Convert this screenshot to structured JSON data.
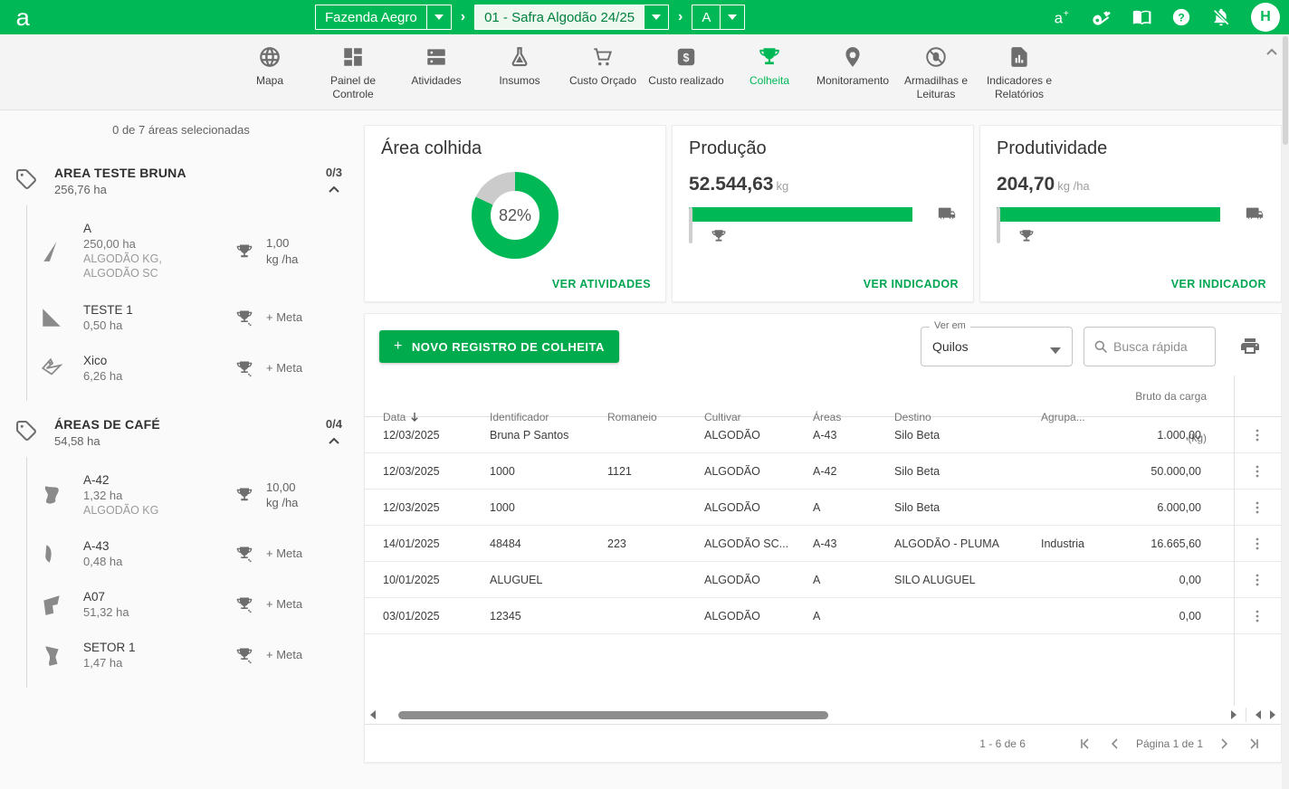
{
  "colors": {
    "header_green": "#00b956",
    "accent_green": "#00a651",
    "button_green": "#00ab4e",
    "donut_gray": "#cbcbcb"
  },
  "header": {
    "logo": "a",
    "farm_selector": {
      "value": "Fazenda Aegro"
    },
    "season_selector": {
      "value": "01 - Safra Algodão 24/25"
    },
    "group_selector": {
      "value": "A"
    },
    "avatar_initial": "H"
  },
  "nav": {
    "items": [
      {
        "label": "Mapa",
        "icon": "globe",
        "active": false
      },
      {
        "label": "Painel de Controle",
        "icon": "dashboard",
        "active": false
      },
      {
        "label": "Atividades",
        "icon": "activities",
        "active": false
      },
      {
        "label": "Insumos",
        "icon": "flask",
        "active": false
      },
      {
        "label": "Custo Orçado",
        "icon": "cart",
        "active": false
      },
      {
        "label": "Custo realizado",
        "icon": "dollar",
        "active": false
      },
      {
        "label": "Colheita",
        "icon": "trophy",
        "active": true
      },
      {
        "label": "Monitoramento",
        "icon": "pin",
        "active": false
      },
      {
        "label": "Armadilhas e Leituras",
        "icon": "bug-off",
        "active": false
      },
      {
        "label": "Indicadores e Relatórios",
        "icon": "report",
        "active": false
      }
    ]
  },
  "sidebar": {
    "selection_summary": "0 de 7 áreas selecionadas",
    "groups": [
      {
        "name": "AREA TESTE BRUNA",
        "area": "256,76 ha",
        "count": "0/3",
        "items": [
          {
            "name": "A",
            "area": "250,00 ha",
            "crops": "ALGODÃO KG,\nALGODÃO SC",
            "goal_value": "1,00",
            "goal_unit": "kg /ha",
            "shape": 0
          },
          {
            "name": "TESTE 1",
            "area": "0,50 ha",
            "crops": "",
            "goal_label": "+ Meta",
            "shape": 1
          },
          {
            "name": "Xico",
            "area": "6,26 ha",
            "crops": "",
            "goal_label": "+ Meta",
            "shape": 2
          }
        ]
      },
      {
        "name": "ÁREAS DE CAFÉ",
        "area": "54,58 ha",
        "count": "0/4",
        "items": [
          {
            "name": "A-42",
            "area": "1,32 ha",
            "crops": "ALGODÃO KG",
            "goal_value": "10,00",
            "goal_unit": "kg /ha",
            "shape": 3
          },
          {
            "name": "A-43",
            "area": "0,48 ha",
            "crops": "",
            "goal_label": "+ Meta",
            "shape": 4
          },
          {
            "name": "A07",
            "area": "51,32 ha",
            "crops": "",
            "goal_label": "+ Meta",
            "shape": 5
          },
          {
            "name": "SETOR 1",
            "area": "1,47 ha",
            "crops": "",
            "goal_label": "+ Meta",
            "shape": 6
          }
        ]
      }
    ]
  },
  "cards": {
    "area_colhida": {
      "title": "Área colhida",
      "percent": 82,
      "percent_label": "82%",
      "link": "VER ATIVIDADES"
    },
    "producao": {
      "title": "Produção",
      "value": "52.544,63",
      "unit": "kg",
      "bar_percent": 93,
      "link": "VER INDICADOR"
    },
    "produtividade": {
      "title": "Produtividade",
      "value": "204,70",
      "unit": "kg /ha",
      "bar_percent": 93,
      "link": "VER INDICADOR"
    }
  },
  "toolbar": {
    "new_record_label": "NOVO REGISTRO DE COLHEITA",
    "view_in_label": "Ver em",
    "view_in_value": "Quilos",
    "search_placeholder": "Busca rápida"
  },
  "table": {
    "columns": [
      "Data",
      "Identificador",
      "Romaneio",
      "Cultivar",
      "Áreas",
      "Destino",
      "Agrupa...",
      "Bruto da carga (kg)"
    ],
    "rows": [
      {
        "data": "12/03/2025",
        "identificador": "Bruna P Santos",
        "romaneio": "",
        "cultivar": "ALGODÃO",
        "areas": "A-43",
        "destino": "Silo Beta",
        "agrupamento": "",
        "bruto": "1.000,00"
      },
      {
        "data": "12/03/2025",
        "identificador": "1000",
        "romaneio": "1121",
        "cultivar": "ALGODÃO",
        "areas": "A-42",
        "destino": "Silo Beta",
        "agrupamento": "",
        "bruto": "50.000,00"
      },
      {
        "data": "12/03/2025",
        "identificador": "1000",
        "romaneio": "",
        "cultivar": "ALGODÃO",
        "areas": "A",
        "destino": "Silo Beta",
        "agrupamento": "",
        "bruto": "6.000,00"
      },
      {
        "data": "14/01/2025",
        "identificador": "48484",
        "romaneio": "223",
        "cultivar": "ALGODÃO SC...",
        "areas": "A-43",
        "destino": "ALGODÃO - PLUMA",
        "agrupamento": "Industria",
        "bruto": "16.665,60"
      },
      {
        "data": "10/01/2025",
        "identificador": "ALUGUEL",
        "romaneio": "",
        "cultivar": "ALGODÃO",
        "areas": "A",
        "destino": "SILO ALUGUEL",
        "agrupamento": "",
        "bruto": "0,00"
      },
      {
        "data": "03/01/2025",
        "identificador": "12345",
        "romaneio": "",
        "cultivar": "ALGODÃO",
        "areas": "A",
        "destino": "",
        "agrupamento": "",
        "bruto": "0,00"
      }
    ]
  },
  "pagination": {
    "range": "1 - 6 de 6",
    "page": "Página 1 de 1"
  }
}
